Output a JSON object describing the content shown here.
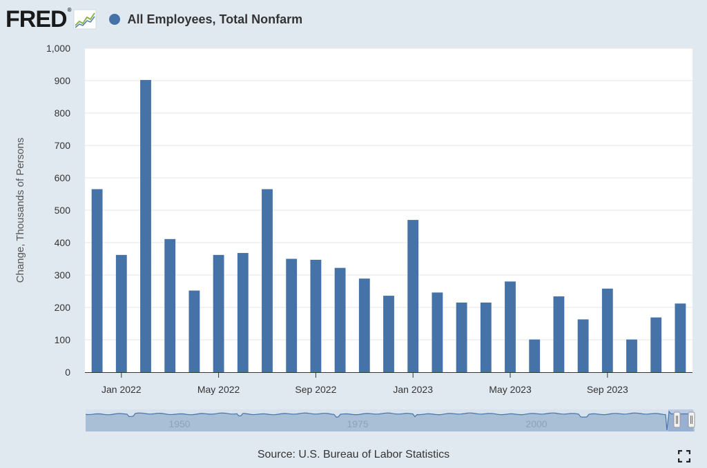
{
  "header": {
    "logo_text": "FRED",
    "logo_reg": "®",
    "series_title": "All Employees, Total Nonfarm"
  },
  "colors": {
    "background": "#e1e9f0",
    "plot_bg": "#ffffff",
    "bar": "#4572a7",
    "grid": "#e6e6e6",
    "navigator_fill": "#a9bfd6",
    "navigator_line": "#4572a7"
  },
  "icons": {
    "logo_graph": "fred-graph-icon",
    "fullscreen": "fullscreen-icon"
  },
  "chart_data": {
    "type": "bar",
    "title": "All Employees, Total Nonfarm",
    "ylabel": "Change, Thousands of Persons",
    "xlabel": "",
    "ylim": [
      0,
      1000
    ],
    "yticks": [
      0,
      100,
      200,
      300,
      400,
      500,
      600,
      700,
      800,
      900,
      1000
    ],
    "ytick_labels": [
      "0",
      "100",
      "200",
      "300",
      "400",
      "500",
      "600",
      "700",
      "800",
      "900",
      "1,000"
    ],
    "categories": [
      "2021-12",
      "2022-01",
      "2022-02",
      "2022-03",
      "2022-04",
      "2022-05",
      "2022-06",
      "2022-07",
      "2022-08",
      "2022-09",
      "2022-10",
      "2022-11",
      "2022-12",
      "2023-01",
      "2023-02",
      "2023-03",
      "2023-04",
      "2023-05",
      "2023-06",
      "2023-07",
      "2023-08",
      "2023-09",
      "2023-10",
      "2023-11",
      "2023-12"
    ],
    "values": [
      565,
      362,
      902,
      411,
      252,
      362,
      368,
      565,
      350,
      347,
      322,
      289,
      236,
      470,
      246,
      215,
      215,
      280,
      101,
      234,
      163,
      258,
      101,
      169,
      212
    ],
    "xtick_labels": [
      {
        "label": "Jan 2022",
        "at": "2022-01"
      },
      {
        "label": "May 2022",
        "at": "2022-05"
      },
      {
        "label": "Sep 2022",
        "at": "2022-09"
      },
      {
        "label": "Jan 2023",
        "at": "2023-01"
      },
      {
        "label": "May 2023",
        "at": "2023-05"
      },
      {
        "label": "Sep 2023",
        "at": "2023-09"
      }
    ],
    "grid": true,
    "legend": "none"
  },
  "navigator": {
    "labels": [
      "1950",
      "1975",
      "2000"
    ]
  },
  "footer": {
    "source": "Source: U.S. Bureau of Labor Statistics"
  }
}
